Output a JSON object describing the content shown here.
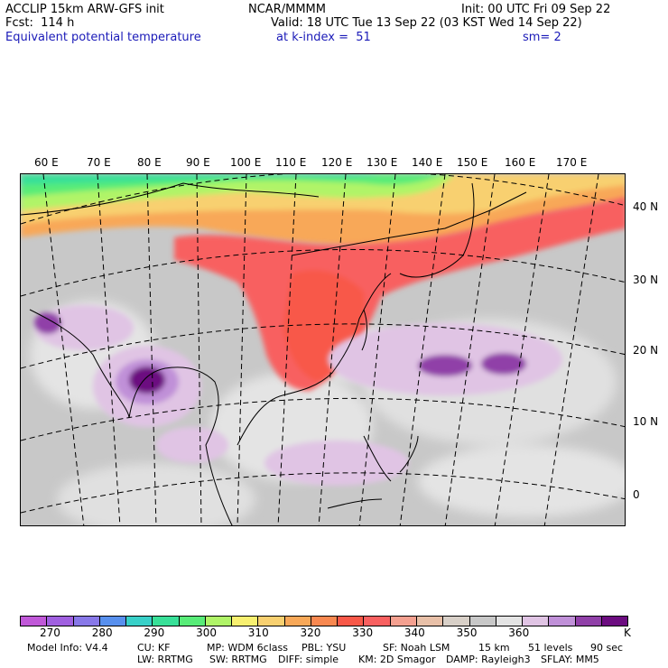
{
  "header": {
    "model": "ACCLIP 15km ARW-GFS init",
    "center": "NCAR/MMMM",
    "init": "Init: 00 UTC Fri 09 Sep 22",
    "fcst": "Fcst:  114 h",
    "valid": "Valid: 18 UTC Tue 13 Sep 22 (03 KST Wed 14 Sep 22)",
    "field": "Equivalent potential temperature",
    "level": "at k-index =  51",
    "smooth": "sm= 2"
  },
  "map": {
    "lon_labels": [
      "60 E",
      "70 E",
      "80 E",
      "90 E",
      "100 E",
      "110 E",
      "120 E",
      "130 E",
      "140 E",
      "150 E",
      "160 E",
      "170 E"
    ],
    "lat_labels": [
      "40 N",
      "30 N",
      "20 N",
      "10 N",
      "0"
    ]
  },
  "colorbar": {
    "colors": [
      "#c058d8",
      "#a060e0",
      "#8878e8",
      "#5890ee",
      "#38d0c8",
      "#38e098",
      "#58ec78",
      "#b0f468",
      "#f8f070",
      "#f8d070",
      "#f8a858",
      "#f88850",
      "#f85848",
      "#f86060",
      "#f4a090",
      "#e8c0a8",
      "#d8d0c8",
      "#c8c8c8",
      "#e4e4e4",
      "#e0c4e4",
      "#c090d8",
      "#9040a8",
      "#6c0c80"
    ],
    "tick_labels": [
      "270",
      "280",
      "290",
      "300",
      "310",
      "320",
      "330",
      "340",
      "350",
      "360"
    ],
    "unit": "K"
  },
  "footer": {
    "line1": [
      "Model Info: V4.4",
      "CU: KF",
      "MP: WDM 6class",
      "PBL: YSU",
      "SF: Noah LSM",
      "15 km",
      "51 levels",
      "90 sec"
    ],
    "line2": [
      "LW: RRTMG",
      "SW: RRTMG",
      "DIFF: simple",
      "KM: 2D Smagor",
      "DAMP: Rayleigh3",
      "SFLAY: MM5"
    ]
  }
}
